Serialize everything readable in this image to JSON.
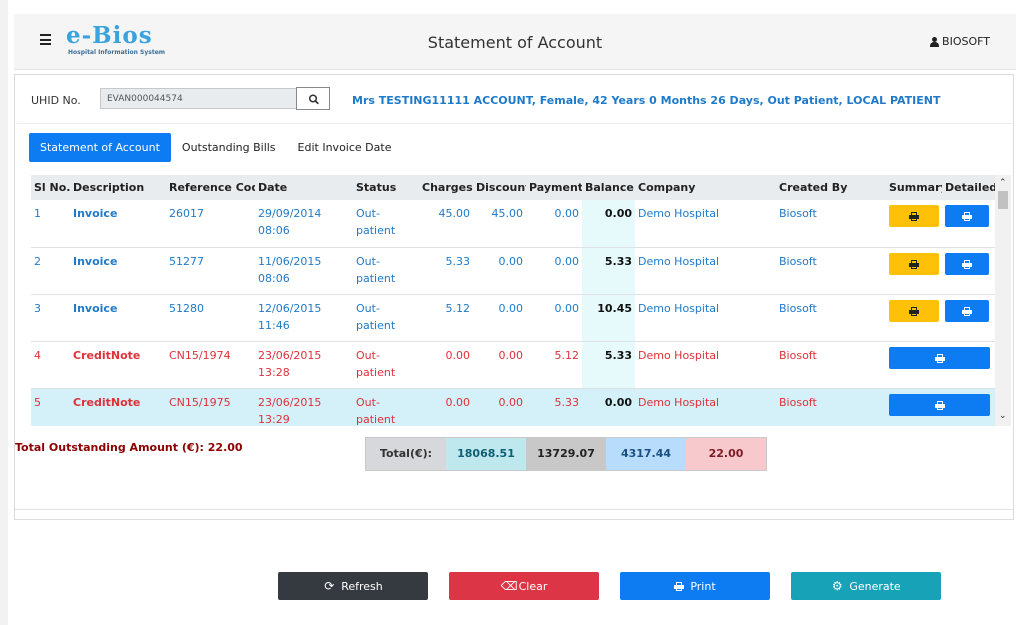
{
  "header": {
    "logo_text": "e-Bios",
    "logo_subtitle": "Hospital Information System",
    "title": "Statement of Account",
    "user_name": "BIOSOFT"
  },
  "search": {
    "uhid_label": "UHID No.",
    "uhid_value": "EVAN000044574",
    "patient_info": "Mrs TESTING11111 ACCOUNT, Female, 42 Years 0 Months 26 Days, Out Patient, LOCAL PATIENT"
  },
  "tabs": [
    {
      "label": "Statement of Account",
      "active": true
    },
    {
      "label": "Outstanding Bills",
      "active": false
    },
    {
      "label": "Edit Invoice Date",
      "active": false
    }
  ],
  "table": {
    "columns": [
      "Sl No.",
      "Description",
      "Reference Code",
      "Date",
      "Status",
      "Charges",
      "Discount",
      "Payments",
      "Balance",
      "Company",
      "Created By",
      "Summary",
      "Detailed"
    ],
    "rows": [
      {
        "sl": "1",
        "desc": "Invoice",
        "ref": "26017",
        "date": "29/09/2014 08:06",
        "status1": "Out-",
        "status2": "patient",
        "charges": "45.00",
        "discount": "45.00",
        "payments": "0.00",
        "balance": "0.00",
        "company": "Demo Hospital",
        "created_by": "Biosoft"
      },
      {
        "sl": "2",
        "desc": "Invoice",
        "ref": "51277",
        "date": "11/06/2015 08:06",
        "status1": "Out-",
        "status2": "patient",
        "charges": "5.33",
        "discount": "0.00",
        "payments": "0.00",
        "balance": "5.33",
        "company": "Demo Hospital",
        "created_by": "Biosoft"
      },
      {
        "sl": "3",
        "desc": "Invoice",
        "ref": "51280",
        "date": "12/06/2015 11:46",
        "status1": "Out-",
        "status2": "patient",
        "charges": "5.12",
        "discount": "0.00",
        "payments": "0.00",
        "balance": "10.45",
        "company": "Demo Hospital",
        "created_by": "Biosoft"
      },
      {
        "sl": "4",
        "desc": "CreditNote",
        "ref": "CN15/1974",
        "date": "23/06/2015 13:28",
        "status1": "Out-",
        "status2": "patient",
        "charges": "0.00",
        "discount": "0.00",
        "payments": "5.12",
        "balance": "5.33",
        "company": "Demo Hospital",
        "created_by": "Biosoft"
      },
      {
        "sl": "5",
        "desc": "CreditNote",
        "ref": "CN15/1975",
        "date": "23/06/2015 13:29",
        "status1": "Out-",
        "status2": "patient",
        "charges": "0.00",
        "discount": "0.00",
        "payments": "5.33",
        "balance": "0.00",
        "company": "Demo Hospital",
        "created_by": "Biosoft"
      }
    ]
  },
  "summary": {
    "outstanding": "Total Outstanding Amount (€): 22.00",
    "total_label": "Total(€):",
    "total_charges": "18068.51",
    "total_discount": "13729.07",
    "total_payments": "4317.44",
    "total_balance": "22.00"
  },
  "actions": {
    "refresh": "Refresh",
    "clear": "Clear",
    "print": "Print",
    "generate": "Generate"
  },
  "colors": {
    "primary": "#0d7bf2",
    "warning": "#ffc107",
    "danger": "#dc3545",
    "info": "#17a2b8",
    "dark": "#343a40",
    "link_blue": "#1f7ac9",
    "credit_red": "#e0303a"
  },
  "icons": {
    "menu": "hamburger-icon",
    "user": "user-icon",
    "search": "search-icon",
    "print": "printer-icon",
    "refresh": "refresh-icon",
    "clear": "eraser-icon",
    "generate": "gear-icon"
  }
}
